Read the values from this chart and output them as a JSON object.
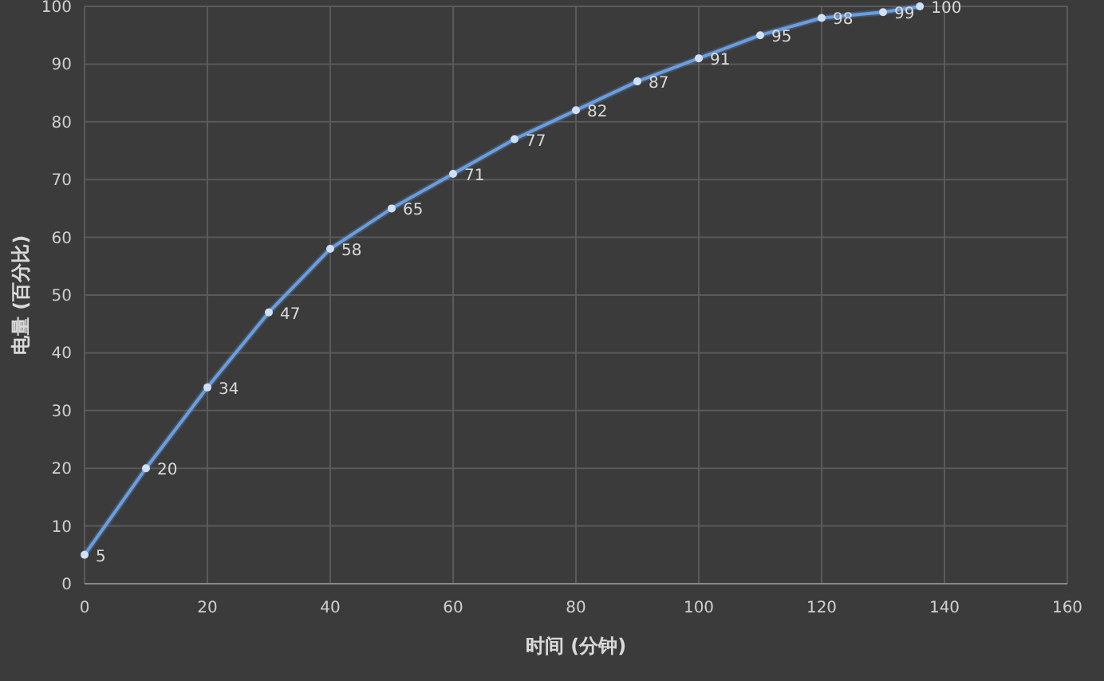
{
  "chart_data": {
    "type": "line",
    "xlabel": "时间 (分钟)",
    "ylabel": "电量 (百分比)",
    "x": [
      0,
      10,
      20,
      30,
      40,
      50,
      60,
      70,
      80,
      90,
      100,
      110,
      120,
      130,
      136
    ],
    "series": [
      {
        "color": "#6a9ee0",
        "values": [
          5,
          20,
          34,
          47,
          58,
          65,
          71,
          77,
          82,
          87,
          91,
          95,
          98,
          99,
          100
        ]
      }
    ],
    "xlim": [
      0,
      160
    ],
    "xticks": [
      0,
      20,
      40,
      60,
      80,
      100,
      120,
      140,
      160
    ],
    "ylim": [
      0,
      100
    ],
    "yticks": [
      0,
      10,
      20,
      30,
      40,
      50,
      60,
      70,
      80,
      90,
      100
    ],
    "grid": true,
    "marker": "circle",
    "line_style": "solid",
    "data_labels": true
  }
}
